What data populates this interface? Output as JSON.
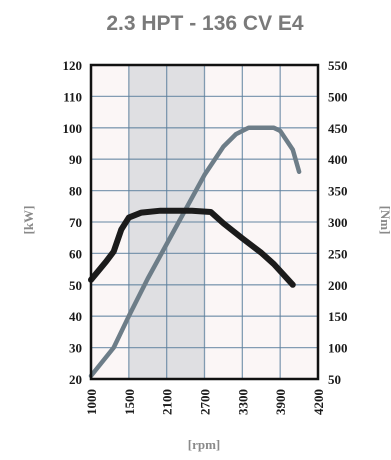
{
  "chart_data": {
    "type": "line",
    "title": "2.3 HPT - 136 CV E4",
    "xlabel": "[rpm]",
    "ylabel_left": "[kW]",
    "ylabel_right": "[Nm]",
    "xlim": [
      1000,
      4200
    ],
    "ylim_left": [
      20,
      120
    ],
    "ylim_right": [
      50,
      550
    ],
    "x_ticks": [
      "1000",
      "1500",
      "2100",
      "2700",
      "3300",
      "3900",
      "4200"
    ],
    "y_left_ticks": [
      "20",
      "30",
      "40",
      "50",
      "60",
      "70",
      "80",
      "90",
      "100",
      "110",
      "120"
    ],
    "y_right_ticks": [
      "50",
      "100",
      "150",
      "200",
      "250",
      "300",
      "350",
      "400",
      "450",
      "500",
      "550"
    ],
    "grid": true,
    "highlight_band_rpm": [
      1500,
      2700
    ],
    "series": [
      {
        "axis": "left",
        "color": "#6d7d88",
        "x": [
          1000,
          1300,
          1500,
          1800,
          2100,
          2400,
          2700,
          3000,
          3200,
          3400,
          3600,
          3800,
          3900,
          4000,
          4050
        ],
        "y": [
          21,
          30,
          40,
          52,
          63,
          74,
          85,
          94,
          98,
          100,
          100,
          100,
          99,
          93,
          86
        ]
      },
      {
        "axis": "right",
        "color": "#1b1b1b",
        "x": [
          1000,
          1200,
          1300,
          1400,
          1500,
          1700,
          2000,
          2500,
          2800,
          3000,
          3300,
          3600,
          3800,
          4000
        ],
        "y": [
          208,
          237,
          253,
          288,
          307,
          315,
          318,
          318,
          316,
          298,
          274,
          251,
          233,
          200
        ]
      }
    ]
  }
}
